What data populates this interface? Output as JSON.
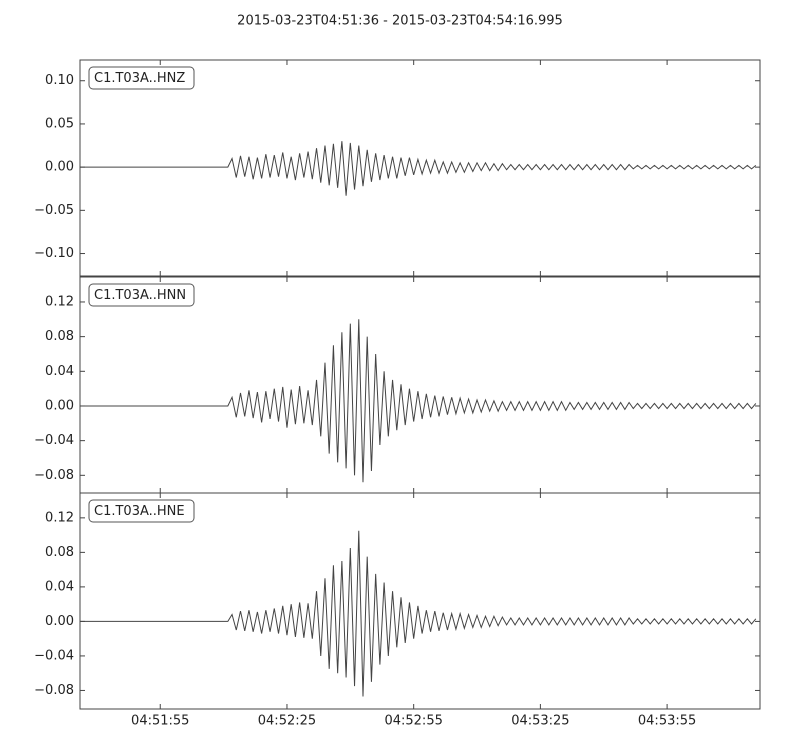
{
  "title": "2015-03-23T04:51:36  -  2015-03-23T04:54:16.995",
  "chart_data": {
    "type": "line",
    "x": [
      0,
      1,
      2,
      3,
      4,
      5,
      6,
      7,
      8,
      9,
      10,
      11,
      12,
      13,
      14,
      15,
      16,
      17,
      18,
      19,
      20,
      21,
      22,
      23,
      24,
      25,
      26,
      27,
      28,
      29,
      30,
      31,
      32,
      33,
      34,
      35,
      36,
      37,
      38,
      39,
      40,
      41,
      42,
      43,
      44,
      45,
      46,
      47,
      48,
      49,
      50,
      51,
      52,
      53,
      54,
      55,
      56,
      57,
      58,
      59,
      60,
      61,
      62,
      63,
      64,
      65,
      66,
      67,
      68,
      69,
      70,
      71,
      72,
      73,
      74,
      75,
      76,
      77,
      78,
      79,
      80,
      81,
      82,
      83,
      84,
      85,
      86,
      87,
      88,
      89,
      90,
      91,
      92,
      93,
      94,
      95,
      96,
      97,
      98,
      99,
      100,
      101,
      102,
      103,
      104,
      105,
      106,
      107,
      108,
      109,
      110,
      111,
      112,
      113,
      114,
      115,
      116,
      117,
      118,
      119,
      120,
      121,
      122,
      123,
      124,
      125,
      126,
      127,
      128,
      129,
      130,
      131,
      132,
      133,
      134,
      135,
      136,
      137,
      138,
      139,
      140,
      141,
      142,
      143,
      144,
      145,
      146,
      147,
      148,
      149,
      150,
      151,
      152,
      153,
      154,
      155,
      156,
      157,
      158,
      159,
      160
    ],
    "xlim": [
      0,
      160.995
    ],
    "xticks": [
      {
        "value": 19,
        "label": "04:51:55"
      },
      {
        "value": 49,
        "label": "04:52:25"
      },
      {
        "value": 79,
        "label": "04:52:55"
      },
      {
        "value": 109,
        "label": "04:53:25"
      },
      {
        "value": 139,
        "label": "04:53:55"
      }
    ],
    "series": [
      {
        "name": "C1.T03A..HNZ",
        "color": "#444444",
        "ylim": [
          -0.126,
          0.124
        ],
        "yticks": [
          {
            "value": 0.1,
            "label": "0.10"
          },
          {
            "value": 0.05,
            "label": "0.05"
          },
          {
            "value": 0,
            "label": "0.00"
          },
          {
            "value": -0.05,
            "label": "−0.05"
          },
          {
            "value": -0.1,
            "label": "−0.10"
          }
        ],
        "values": [
          0,
          0,
          0,
          0,
          0,
          0,
          0,
          0,
          0,
          0,
          0,
          0,
          0,
          0,
          0,
          0,
          0,
          0,
          0,
          0,
          0,
          0,
          0,
          0,
          0,
          0,
          0,
          0,
          0,
          0,
          0,
          0,
          0,
          0,
          0,
          0,
          0.01,
          -0.012,
          0.013,
          -0.011,
          0.012,
          -0.014,
          0.011,
          -0.013,
          0.015,
          -0.012,
          0.014,
          -0.011,
          0.017,
          -0.013,
          0.012,
          -0.015,
          0.016,
          -0.012,
          0.018,
          -0.014,
          0.022,
          -0.018,
          0.025,
          -0.021,
          0.027,
          -0.024,
          0.03,
          -0.033,
          0.028,
          -0.026,
          0.025,
          -0.022,
          0.02,
          -0.017,
          0.016,
          -0.015,
          0.014,
          -0.013,
          0.012,
          -0.013,
          0.011,
          -0.01,
          0.011,
          -0.009,
          0.009,
          -0.008,
          0.008,
          -0.007,
          0.008,
          -0.007,
          0.006,
          -0.007,
          0.006,
          -0.006,
          0.005,
          -0.006,
          0.005,
          -0.005,
          0.005,
          -0.004,
          0.005,
          -0.004,
          0.004,
          -0.004,
          0.004,
          -0.003,
          0.003,
          -0.003,
          0.003,
          -0.003,
          0.003,
          -0.003,
          0.003,
          -0.003,
          0.003,
          -0.003,
          0.003,
          -0.003,
          0.003,
          -0.003,
          0.003,
          -0.003,
          0.003,
          -0.003,
          0.003,
          -0.003,
          0.003,
          -0.003,
          0.003,
          -0.003,
          0.003,
          -0.003,
          0.003,
          -0.003,
          0.003,
          -0.002,
          0.002,
          -0.002,
          0.002,
          -0.002,
          0.002,
          -0.002,
          0.002,
          -0.002,
          0.002,
          -0.002,
          0.002,
          -0.002,
          0.002,
          -0.002,
          0.002,
          -0.002,
          0.002,
          -0.002,
          0.002,
          -0.002,
          0.002,
          -0.002,
          0.002,
          -0.002,
          0.002,
          -0.002,
          0.002,
          -0.002,
          0.002
        ]
      },
      {
        "name": "C1.T03A..HNN",
        "color": "#444444",
        "ylim": [
          -0.1004,
          0.1488
        ],
        "yticks": [
          {
            "value": 0.12,
            "label": "0.12"
          },
          {
            "value": 0.08,
            "label": "0.08"
          },
          {
            "value": 0.04,
            "label": "0.04"
          },
          {
            "value": 0,
            "label": "0.00"
          },
          {
            "value": -0.04,
            "label": "−0.04"
          },
          {
            "value": -0.08,
            "label": "−0.08"
          }
        ],
        "values": [
          0,
          0,
          0,
          0,
          0,
          0,
          0,
          0,
          0,
          0,
          0,
          0,
          0,
          0,
          0,
          0,
          0,
          0,
          0,
          0,
          0,
          0,
          0,
          0,
          0,
          0,
          0,
          0,
          0,
          0,
          0,
          0,
          0,
          0,
          0,
          0,
          0.01,
          -0.013,
          0.015,
          -0.012,
          0.018,
          -0.014,
          0.016,
          -0.019,
          0.017,
          -0.015,
          0.02,
          -0.018,
          0.022,
          -0.025,
          0.019,
          -0.021,
          0.023,
          -0.02,
          0.018,
          -0.022,
          0.03,
          -0.035,
          0.05,
          -0.055,
          0.07,
          -0.065,
          0.085,
          -0.072,
          0.095,
          -0.08,
          0.1,
          -0.088,
          0.08,
          -0.075,
          0.06,
          -0.045,
          0.04,
          -0.035,
          0.03,
          -0.028,
          0.025,
          -0.022,
          0.02,
          -0.018,
          0.017,
          -0.015,
          0.014,
          -0.013,
          0.012,
          -0.012,
          0.011,
          -0.01,
          0.01,
          -0.009,
          0.009,
          -0.008,
          0.008,
          -0.008,
          0.007,
          -0.007,
          0.007,
          -0.006,
          0.006,
          -0.006,
          0.005,
          -0.005,
          0.005,
          -0.005,
          0.005,
          -0.005,
          0.005,
          -0.005,
          0.005,
          -0.005,
          0.005,
          -0.005,
          0.005,
          -0.005,
          0.005,
          -0.005,
          0.004,
          -0.004,
          0.004,
          -0.004,
          0.004,
          -0.004,
          0.004,
          -0.004,
          0.004,
          -0.004,
          0.004,
          -0.004,
          0.004,
          -0.004,
          0.004,
          -0.003,
          0.003,
          -0.003,
          0.003,
          -0.003,
          0.003,
          -0.003,
          0.003,
          -0.003,
          0.003,
          -0.003,
          0.003,
          -0.003,
          0.003,
          -0.003,
          0.003,
          -0.003,
          0.003,
          -0.003,
          0.003,
          -0.003,
          0.003,
          -0.003,
          0.003,
          -0.003,
          0.003,
          -0.003,
          0.003,
          -0.003,
          0.003
        ]
      },
      {
        "name": "C1.T03A..HNE",
        "color": "#444444",
        "ylim": [
          -0.1015,
          0.1488
        ],
        "yticks": [
          {
            "value": 0.12,
            "label": "0.12"
          },
          {
            "value": 0.08,
            "label": "0.08"
          },
          {
            "value": 0.04,
            "label": "0.04"
          },
          {
            "value": 0,
            "label": "0.00"
          },
          {
            "value": -0.04,
            "label": "−0.04"
          },
          {
            "value": -0.08,
            "label": "−0.08"
          }
        ],
        "values": [
          0,
          0,
          0,
          0,
          0,
          0,
          0,
          0,
          0,
          0,
          0,
          0,
          0,
          0,
          0,
          0,
          0,
          0,
          0,
          0,
          0,
          0,
          0,
          0,
          0,
          0,
          0,
          0,
          0,
          0,
          0,
          0,
          0,
          0,
          0,
          0,
          0.008,
          -0.01,
          0.012,
          -0.011,
          0.013,
          -0.012,
          0.011,
          -0.014,
          0.013,
          -0.012,
          0.015,
          -0.014,
          0.018,
          -0.016,
          0.02,
          -0.018,
          0.022,
          -0.019,
          0.021,
          -0.02,
          0.035,
          -0.04,
          0.05,
          -0.055,
          0.065,
          -0.06,
          0.07,
          -0.065,
          0.085,
          -0.075,
          0.105,
          -0.087,
          0.075,
          -0.07,
          0.055,
          -0.05,
          0.045,
          -0.04,
          0.035,
          -0.03,
          0.028,
          -0.025,
          0.022,
          -0.02,
          0.018,
          -0.014,
          0.013,
          -0.012,
          0.012,
          -0.011,
          0.01,
          -0.01,
          0.009,
          -0.009,
          0.009,
          -0.008,
          0.008,
          -0.007,
          0.007,
          -0.007,
          0.006,
          -0.006,
          0.006,
          -0.005,
          0.005,
          -0.004,
          0.004,
          -0.004,
          0.004,
          -0.004,
          0.004,
          -0.004,
          0.004,
          -0.004,
          0.004,
          -0.004,
          0.004,
          -0.004,
          0.004,
          -0.004,
          0.004,
          -0.004,
          0.004,
          -0.004,
          0.004,
          -0.004,
          0.004,
          -0.004,
          0.004,
          -0.004,
          0.004,
          -0.004,
          0.004,
          -0.004,
          0.004,
          -0.003,
          0.003,
          -0.003,
          0.003,
          -0.003,
          0.003,
          -0.003,
          0.003,
          -0.003,
          0.003,
          -0.003,
          0.003,
          -0.003,
          0.003,
          -0.003,
          0.003,
          -0.003,
          0.003,
          -0.003,
          0.003,
          -0.003,
          0.003,
          -0.003,
          0.003,
          -0.003,
          0.003,
          -0.003,
          0.003,
          -0.003,
          0.003
        ]
      }
    ]
  }
}
